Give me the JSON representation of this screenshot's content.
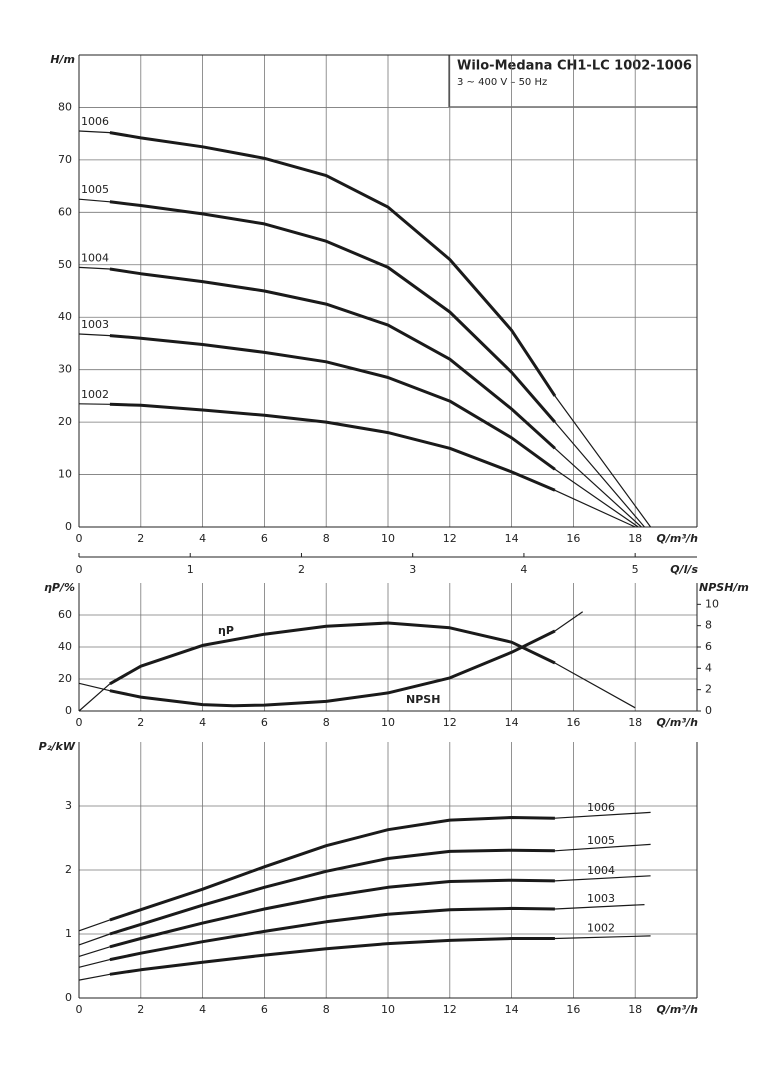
{
  "chart_data": [
    {
      "type": "line",
      "title": "Wilo-Medana CH1-LC 1002-1006",
      "subtitle": "3 ~ 400 V – 50 Hz",
      "y_label": "H/m",
      "x_label": "Q/m³/h",
      "xlim": [
        0,
        20
      ],
      "xticks": [
        0,
        2,
        4,
        6,
        8,
        10,
        12,
        14,
        16,
        18
      ],
      "ylim": [
        0,
        90
      ],
      "yticks": [
        0,
        10,
        20,
        30,
        40,
        50,
        60,
        70,
        80
      ],
      "grid": true,
      "x2_label": "Q/l/s",
      "x2lim": [
        0,
        5.556
      ],
      "x2ticks": [
        0,
        1,
        2,
        3,
        4,
        5
      ],
      "series": [
        {
          "name": "1006",
          "color": "#1a1a1a",
          "x": [
            0,
            1,
            2,
            4,
            6,
            8,
            10,
            12,
            14,
            15.4,
            18.5
          ],
          "values": [
            75.5,
            75.2,
            74.2,
            72.5,
            70.3,
            67,
            61,
            51,
            37.5,
            25,
            0
          ]
        },
        {
          "name": "1005",
          "color": "#1a1a1a",
          "x": [
            0,
            1,
            2,
            4,
            6,
            8,
            10,
            12,
            14,
            15.4,
            18.3
          ],
          "values": [
            62.5,
            62,
            61.3,
            59.7,
            57.8,
            54.5,
            49.5,
            41,
            29.5,
            20,
            0
          ]
        },
        {
          "name": "1004",
          "color": "#1a1a1a",
          "x": [
            0,
            1,
            2,
            4,
            6,
            8,
            10,
            12,
            14,
            15.4,
            18.2
          ],
          "values": [
            49.5,
            49.2,
            48.3,
            46.8,
            45,
            42.5,
            38.5,
            32,
            22.5,
            15,
            0
          ]
        },
        {
          "name": "1003",
          "color": "#1a1a1a",
          "x": [
            0,
            1,
            2,
            4,
            6,
            8,
            10,
            12,
            14,
            15.4,
            18.1
          ],
          "values": [
            36.8,
            36.5,
            36,
            34.8,
            33.3,
            31.5,
            28.5,
            24,
            17,
            11,
            0
          ]
        },
        {
          "name": "1002",
          "color": "#1a1a1a",
          "x": [
            0,
            1,
            2,
            4,
            6,
            8,
            10,
            12,
            14,
            15.4,
            18
          ],
          "values": [
            23.5,
            23.4,
            23.2,
            22.3,
            21.3,
            20,
            18,
            15,
            10.5,
            7,
            0
          ]
        }
      ]
    },
    {
      "type": "line",
      "y_label": "ηP/%",
      "y2_label": "NPSH/m",
      "x_label": "Q/m³/h",
      "xlim": [
        0,
        20
      ],
      "xticks": [
        0,
        2,
        4,
        6,
        8,
        10,
        12,
        14,
        16,
        18
      ],
      "ylim": [
        0,
        80
      ],
      "yticks": [
        0,
        20,
        40,
        60
      ],
      "y2lim": [
        0,
        12
      ],
      "y2ticks": [
        0,
        2,
        4,
        6,
        8,
        10
      ],
      "grid": true,
      "series": [
        {
          "name": "ηP",
          "color": "#1a1a1a",
          "x": [
            0,
            1,
            2,
            4,
            6,
            8,
            10,
            12,
            14,
            15.4,
            18
          ],
          "values": [
            0,
            17,
            28,
            41,
            48,
            53,
            55,
            52,
            43,
            30,
            2
          ]
        },
        {
          "name": "NPSH",
          "color": "#1a1a1a",
          "axis": "y2",
          "x": [
            0,
            1,
            2,
            4,
            5,
            6,
            8,
            10,
            12,
            14,
            15.4,
            16.3
          ],
          "values": [
            2.6,
            1.9,
            1.3,
            0.6,
            0.5,
            0.55,
            0.9,
            1.7,
            3.1,
            5.5,
            7.5,
            9.3
          ]
        }
      ]
    },
    {
      "type": "line",
      "y_label": "P₂/kW",
      "x_label": "Q/m³/h",
      "xlim": [
        0,
        20
      ],
      "xticks": [
        0,
        2,
        4,
        6,
        8,
        10,
        12,
        14,
        16,
        18
      ],
      "ylim": [
        0,
        4
      ],
      "yticks": [
        0,
        1,
        2,
        3
      ],
      "grid": true,
      "series": [
        {
          "name": "1006",
          "color": "#1a1a1a",
          "x": [
            0,
            1,
            2,
            4,
            6,
            8,
            10,
            12,
            14,
            15.4,
            18.5
          ],
          "values": [
            1.05,
            1.22,
            1.38,
            1.7,
            2.05,
            2.38,
            2.63,
            2.78,
            2.82,
            2.81,
            2.9
          ]
        },
        {
          "name": "1005",
          "color": "#1a1a1a",
          "x": [
            0,
            1,
            2,
            4,
            6,
            8,
            10,
            12,
            14,
            15.4,
            18.5
          ],
          "values": [
            0.83,
            1.0,
            1.15,
            1.45,
            1.73,
            1.98,
            2.18,
            2.29,
            2.31,
            2.3,
            2.4
          ]
        },
        {
          "name": "1004",
          "color": "#1a1a1a",
          "x": [
            0,
            1,
            2,
            4,
            6,
            8,
            10,
            12,
            14,
            15.4,
            18.5
          ],
          "values": [
            0.65,
            0.8,
            0.93,
            1.17,
            1.39,
            1.58,
            1.73,
            1.82,
            1.84,
            1.83,
            1.91
          ]
        },
        {
          "name": "1003",
          "color": "#1a1a1a",
          "x": [
            0,
            1,
            2,
            4,
            6,
            8,
            10,
            12,
            14,
            15.4,
            18.3
          ],
          "values": [
            0.48,
            0.6,
            0.7,
            0.88,
            1.04,
            1.19,
            1.31,
            1.38,
            1.4,
            1.39,
            1.46
          ]
        },
        {
          "name": "1002",
          "color": "#1a1a1a",
          "x": [
            0,
            1,
            2,
            4,
            6,
            8,
            10,
            12,
            14,
            15.4,
            18.5
          ],
          "values": [
            0.28,
            0.37,
            0.44,
            0.56,
            0.67,
            0.77,
            0.85,
            0.9,
            0.93,
            0.93,
            0.97
          ]
        }
      ]
    }
  ]
}
